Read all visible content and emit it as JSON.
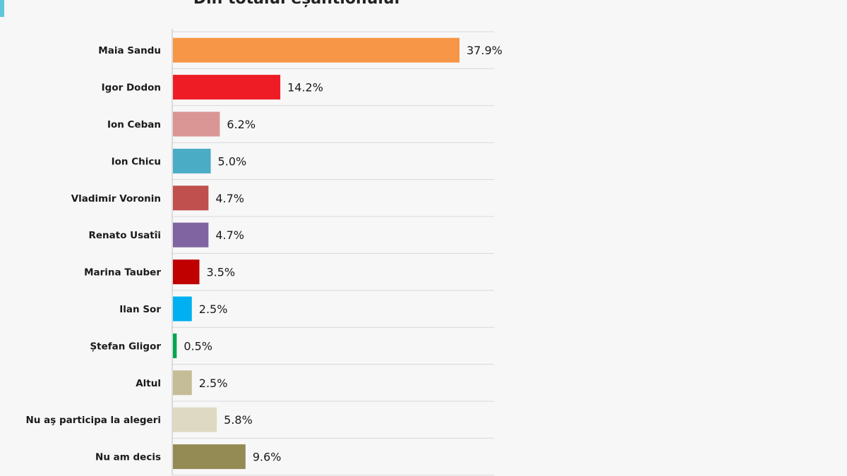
{
  "chart_data": {
    "type": "bar",
    "orientation": "horizontal",
    "title": "Din totalul eșantionului",
    "categories": [
      "Maia Sandu",
      "Igor Dodon",
      "Ion Ceban",
      "Ion Chicu",
      "Vladimir Voronin",
      "Renato Usatîi",
      "Marina Tauber",
      "Ilan Sor",
      "Ștefan Gligor",
      "Altul",
      "Nu aş participa la alegeri",
      "Nu am decis"
    ],
    "values": [
      37.9,
      14.2,
      6.2,
      5.0,
      4.7,
      4.7,
      3.5,
      2.5,
      0.5,
      2.5,
      5.8,
      9.6
    ],
    "value_labels": [
      "37.9%",
      "14.2%",
      "6.2%",
      "5.0%",
      "4.7%",
      "4.7%",
      "3.5%",
      "2.5%",
      "0.5%",
      "2.5%",
      "5.8%",
      "9.6%"
    ],
    "colors": [
      "#f79646",
      "#ee1c25",
      "#d99694",
      "#4bacc6",
      "#c0504d",
      "#8064a2",
      "#c00000",
      "#00b0f0",
      "#00a651",
      "#c4bd97",
      "#ddd9c3",
      "#948a54"
    ],
    "xlim": [
      0,
      40
    ],
    "grid": true,
    "legend": "none"
  }
}
